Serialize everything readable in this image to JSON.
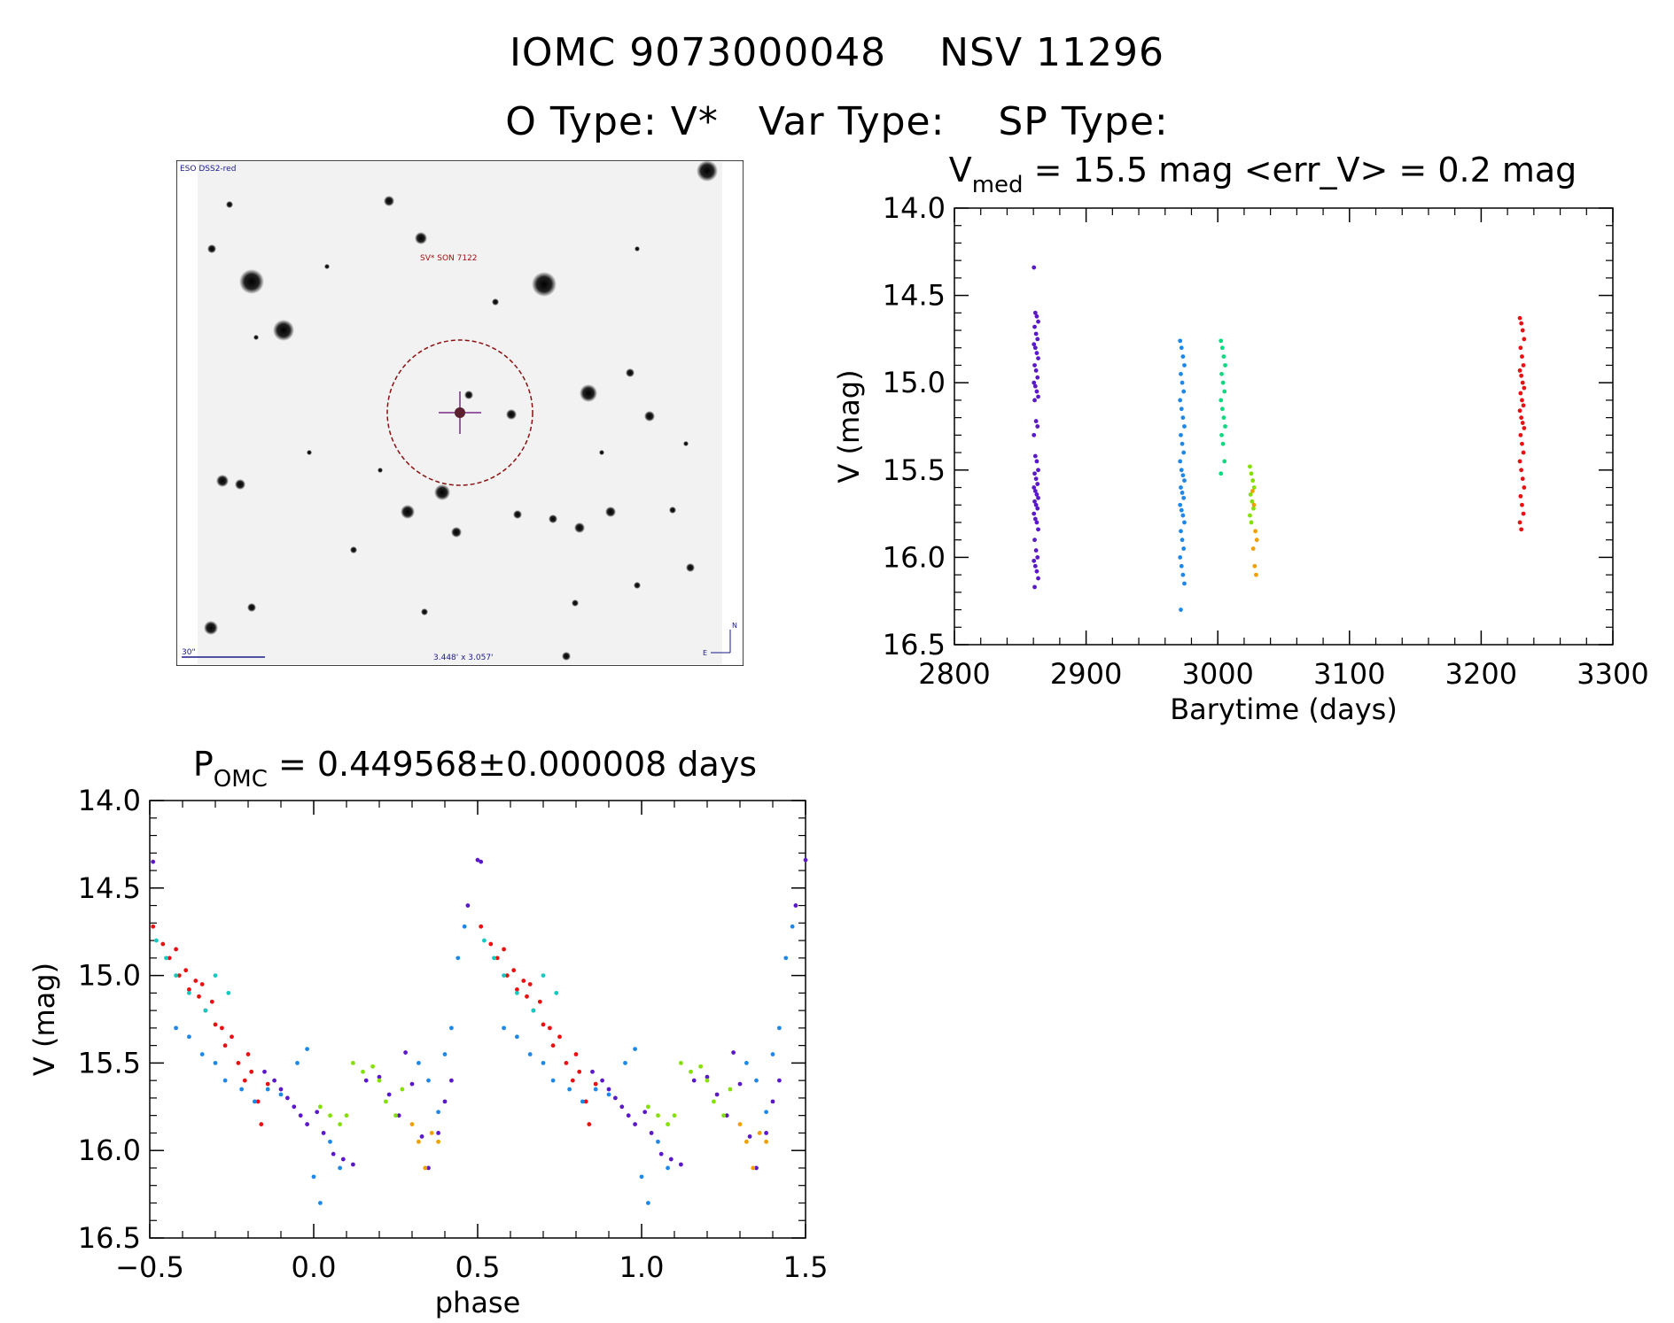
{
  "header": {
    "title_line1": "IOMC 9073000048    NSV 11296",
    "title_line2": "O Type: V*   Var Type:    SP Type:"
  },
  "finder_chart": {
    "survey_label": "ESO DSS2-red",
    "object_label": "SV* SON 7122",
    "scale_label": "30\"",
    "fov_label": "3.448' x 3.057'",
    "compass": {
      "north": "N",
      "east": "E"
    }
  },
  "lightcurve_panel": {
    "title_main": "V",
    "title_sub": "med",
    "title_rest": " = 15.5 mag <err_V> = 0.2 mag"
  },
  "phase_panel": {
    "title_main": "P",
    "title_sub": "OMC",
    "title_rest": " = 0.449568±0.000008 days"
  },
  "colors": {
    "purple": "#5a18c8",
    "blue": "#1e88e8",
    "green": "#10d880",
    "lime": "#84e000",
    "orange": "#f0a000",
    "red": "#e81010",
    "cyan": "#18c8c0",
    "royal": "#3030e0",
    "reticle": "#8b1010",
    "cross": "#7a2a8a"
  },
  "chart_data": [
    {
      "type": "scatter",
      "xlabel": "Barytime (days)",
      "ylabel": "V (mag)",
      "xlim": [
        2800,
        3300
      ],
      "ylim": [
        16.5,
        14.0
      ],
      "y_inverted": true,
      "xticks": [
        "2800",
        "2900",
        "3000",
        "3100",
        "3200",
        "3300"
      ],
      "yticks": [
        "14.0",
        "14.5",
        "15.0",
        "15.5",
        "16.0",
        "16.5"
      ],
      "series": [
        {
          "color_key": "purple",
          "x_center": 2862,
          "y_values": [
            14.34,
            14.6,
            14.62,
            14.65,
            14.68,
            14.72,
            14.75,
            14.78,
            14.8,
            14.83,
            14.86,
            14.9,
            14.93,
            14.97,
            15.0,
            15.02,
            15.05,
            15.08,
            15.1,
            15.22,
            15.25,
            15.3,
            15.42,
            15.45,
            15.5,
            15.52,
            15.55,
            15.58,
            15.6,
            15.62,
            15.64,
            15.66,
            15.68,
            15.7,
            15.72,
            15.75,
            15.78,
            15.8,
            15.84,
            15.9,
            15.96,
            16.0,
            16.02,
            16.05,
            16.08,
            16.12,
            16.17
          ]
        },
        {
          "color_key": "blue",
          "x_center": 2973,
          "y_values": [
            14.76,
            14.8,
            14.85,
            14.9,
            14.95,
            15.0,
            15.05,
            15.1,
            15.15,
            15.2,
            15.25,
            15.3,
            15.35,
            15.4,
            15.45,
            15.5,
            15.53,
            15.56,
            15.6,
            15.63,
            15.66,
            15.7,
            15.73,
            15.76,
            15.8,
            15.85,
            15.9,
            15.95,
            16.0,
            16.05,
            16.1,
            16.15,
            16.3
          ]
        },
        {
          "color_key": "green",
          "x_center": 3004,
          "y_values": [
            14.76,
            14.8,
            14.85,
            14.9,
            14.95,
            15.0,
            15.05,
            15.1,
            15.15,
            15.2,
            15.25,
            15.3,
            15.35,
            15.45,
            15.52
          ]
        },
        {
          "color_key": "lime",
          "x_center": 3026,
          "y_values": [
            15.48,
            15.52,
            15.56,
            15.6,
            15.64,
            15.68,
            15.72,
            15.76,
            15.8
          ]
        },
        {
          "color_key": "orange",
          "x_center": 3028,
          "y_values": [
            15.62,
            15.7,
            15.85,
            15.9,
            15.95,
            16.05,
            16.1
          ]
        },
        {
          "color_key": "red",
          "x_center": 3231,
          "y_values": [
            14.63,
            14.66,
            14.7,
            14.75,
            14.8,
            14.85,
            14.9,
            14.93,
            14.96,
            15.0,
            15.03,
            15.06,
            15.1,
            15.13,
            15.16,
            15.2,
            15.23,
            15.26,
            15.3,
            15.35,
            15.4,
            15.45,
            15.5,
            15.55,
            15.6,
            15.65,
            15.7,
            15.75,
            15.8,
            15.84
          ]
        }
      ]
    },
    {
      "type": "scatter",
      "xlabel": "phase",
      "ylabel": "V (mag)",
      "xlim": [
        -0.5,
        1.5
      ],
      "ylim": [
        16.5,
        14.0
      ],
      "y_inverted": true,
      "period_days": 0.449568,
      "xticks": [
        "−0.5",
        "0.0",
        "0.5",
        "1.0",
        "1.5"
      ],
      "yticks": [
        "14.0",
        "14.5",
        "15.0",
        "15.5",
        "16.0",
        "16.5"
      ],
      "series": [
        {
          "color_key": "red",
          "points": [
            [
              -0.49,
              14.72
            ],
            [
              -0.46,
              14.82
            ],
            [
              -0.44,
              14.9
            ],
            [
              -0.42,
              14.85
            ],
            [
              -0.41,
              15.0
            ],
            [
              -0.39,
              14.97
            ],
            [
              -0.38,
              15.08
            ],
            [
              -0.36,
              15.03
            ],
            [
              -0.35,
              15.12
            ],
            [
              -0.34,
              15.05
            ],
            [
              -0.33,
              15.2
            ],
            [
              -0.31,
              15.15
            ],
            [
              -0.3,
              15.28
            ],
            [
              -0.28,
              15.3
            ],
            [
              -0.27,
              15.4
            ],
            [
              -0.25,
              15.35
            ],
            [
              -0.23,
              15.5
            ],
            [
              -0.21,
              15.6
            ],
            [
              -0.2,
              15.45
            ],
            [
              -0.19,
              15.55
            ],
            [
              -0.17,
              15.72
            ],
            [
              -0.16,
              15.85
            ],
            [
              -0.14,
              15.62
            ]
          ]
        },
        {
          "color_key": "purple",
          "points": [
            [
              -0.49,
              14.35
            ],
            [
              -0.15,
              15.55
            ],
            [
              -0.12,
              15.6
            ],
            [
              -0.1,
              15.65
            ],
            [
              -0.08,
              15.7
            ],
            [
              -0.06,
              15.75
            ],
            [
              -0.04,
              15.8
            ],
            [
              -0.02,
              15.85
            ],
            [
              0.01,
              15.78
            ],
            [
              0.03,
              15.9
            ],
            [
              0.06,
              16.02
            ],
            [
              0.09,
              16.05
            ],
            [
              0.12,
              16.08
            ],
            [
              0.16,
              15.6
            ],
            [
              0.2,
              15.58
            ],
            [
              0.23,
              15.68
            ],
            [
              0.26,
              15.8
            ],
            [
              0.28,
              15.44
            ],
            [
              0.3,
              15.62
            ],
            [
              0.33,
              15.92
            ],
            [
              0.35,
              16.1
            ],
            [
              0.38,
              15.9
            ],
            [
              0.4,
              15.72
            ],
            [
              0.42,
              15.6
            ],
            [
              0.47,
              14.6
            ],
            [
              0.5,
              14.34
            ]
          ]
        },
        {
          "color_key": "blue",
          "points": [
            [
              -0.42,
              15.3
            ],
            [
              -0.38,
              15.35
            ],
            [
              -0.34,
              15.45
            ],
            [
              -0.3,
              15.5
            ],
            [
              -0.27,
              15.6
            ],
            [
              -0.22,
              15.65
            ],
            [
              -0.18,
              15.72
            ],
            [
              -0.14,
              15.65
            ],
            [
              -0.1,
              15.68
            ],
            [
              -0.05,
              15.5
            ],
            [
              -0.02,
              15.42
            ],
            [
              0.0,
              16.15
            ],
            [
              0.02,
              16.3
            ],
            [
              0.05,
              15.95
            ],
            [
              0.08,
              16.1
            ],
            [
              0.32,
              15.5
            ],
            [
              0.35,
              15.6
            ],
            [
              0.38,
              15.78
            ],
            [
              0.4,
              15.45
            ],
            [
              0.42,
              15.3
            ],
            [
              0.44,
              14.9
            ],
            [
              0.46,
              14.72
            ]
          ]
        },
        {
          "color_key": "cyan",
          "points": [
            [
              -0.48,
              14.8
            ],
            [
              -0.45,
              14.9
            ],
            [
              -0.42,
              15.0
            ],
            [
              -0.38,
              15.1
            ],
            [
              -0.33,
              15.2
            ],
            [
              -0.3,
              15.0
            ],
            [
              -0.26,
              15.1
            ]
          ]
        },
        {
          "color_key": "lime",
          "points": [
            [
              0.02,
              15.75
            ],
            [
              0.05,
              15.8
            ],
            [
              0.08,
              15.85
            ],
            [
              0.1,
              15.8
            ],
            [
              0.12,
              15.5
            ],
            [
              0.15,
              15.55
            ],
            [
              0.18,
              15.52
            ],
            [
              0.2,
              15.6
            ],
            [
              0.22,
              15.72
            ],
            [
              0.25,
              15.8
            ],
            [
              0.27,
              15.65
            ]
          ]
        },
        {
          "color_key": "orange",
          "points": [
            [
              0.3,
              15.85
            ],
            [
              0.32,
              15.95
            ],
            [
              0.34,
              16.1
            ],
            [
              0.36,
              15.9
            ],
            [
              0.38,
              15.95
            ]
          ]
        }
      ]
    }
  ]
}
